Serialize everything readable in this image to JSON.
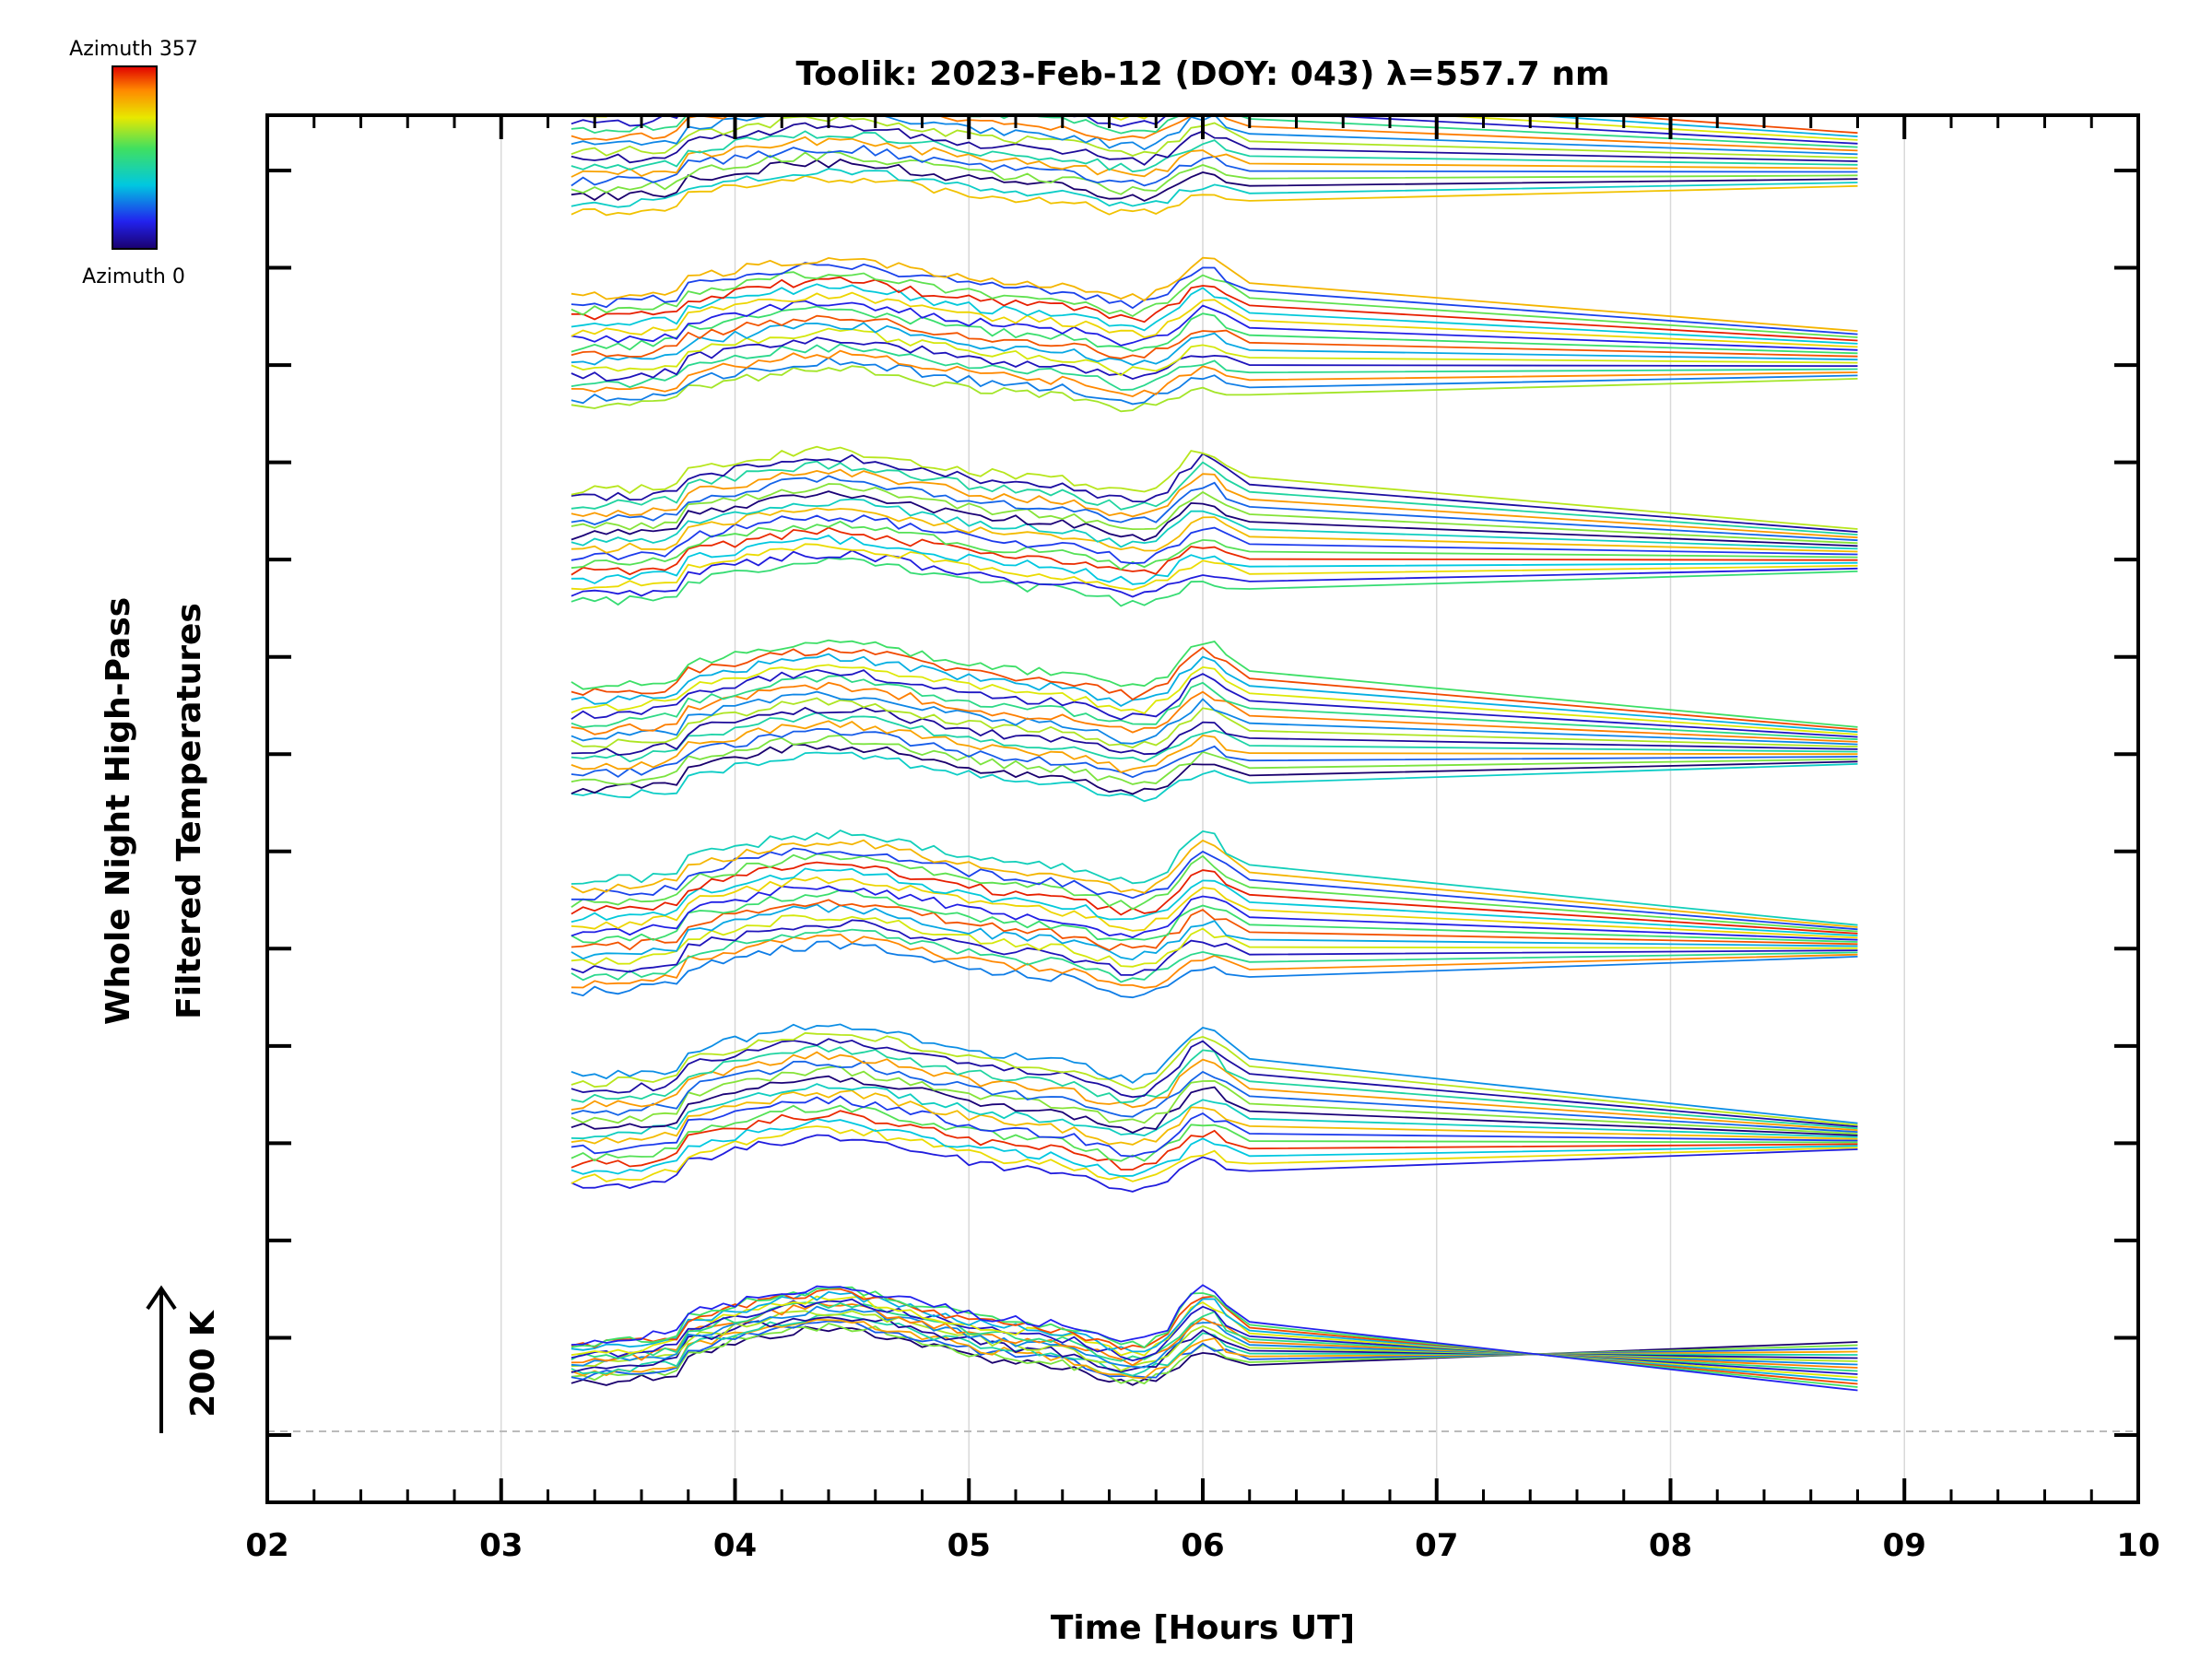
{
  "chart_data": {
    "type": "line",
    "title": "Toolik: 2023-Feb-12 (DOY: 043) λ=557.7 nm",
    "xlabel": "Time [Hours UT]",
    "ylabel_line1": "Whole Night High-Pass",
    "ylabel_line2": "Filtered Temperatures",
    "xlim": [
      2,
      10
    ],
    "x_ticks": [
      "02",
      "03",
      "04",
      "05",
      "06",
      "07",
      "08",
      "09",
      "10"
    ],
    "x_tick_values": [
      2,
      3,
      4,
      5,
      6,
      7,
      8,
      9,
      10
    ],
    "x_start": 3.3,
    "x_end": 8.8,
    "scale_bar_label": "200 K",
    "colorbar": {
      "top_label": "Azimuth 357",
      "bottom_label": "Azimuth 0",
      "colormap": "rainbow",
      "min": 0,
      "max": 357
    },
    "grid": true,
    "zenith_group_count": 7,
    "series_per_group": 16,
    "colors": {
      "axis": "#000000",
      "grid": "#d9d9d9",
      "baseline": "#bbbbbb"
    }
  }
}
